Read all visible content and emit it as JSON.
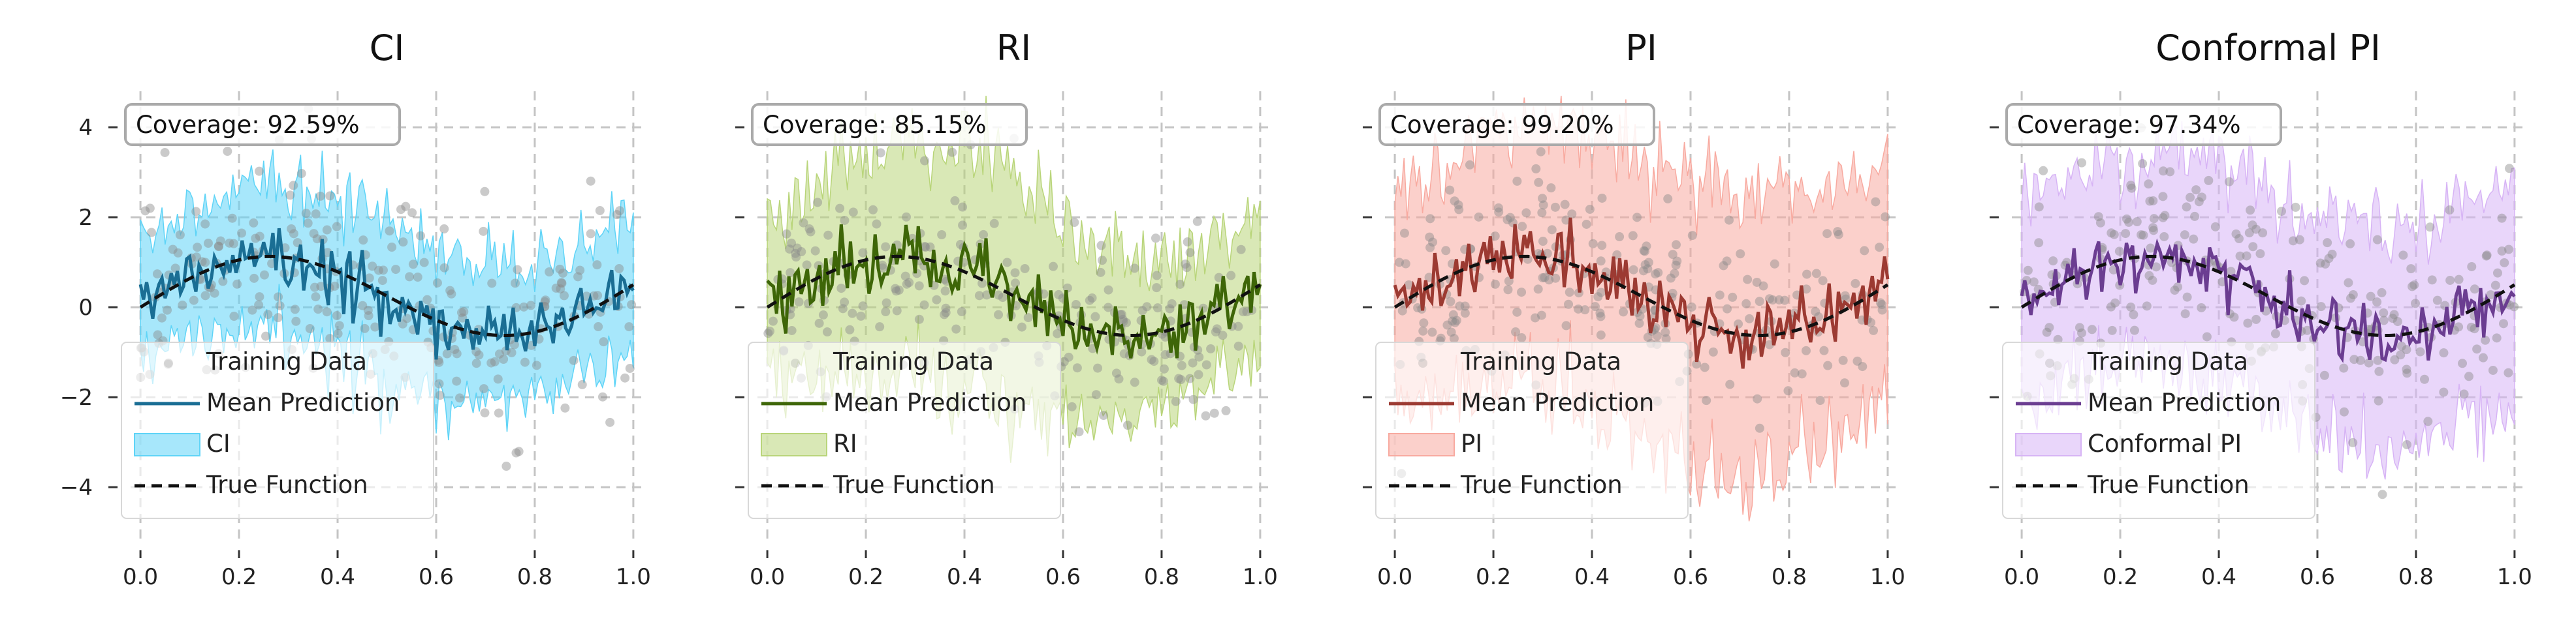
{
  "figure": {
    "shared_axes": {
      "x_ticks": [
        "0.0",
        "0.2",
        "0.4",
        "0.6",
        "0.8",
        "1.0"
      ],
      "y_ticks": [
        "−4",
        "−2",
        "0",
        "2",
        "4"
      ]
    }
  },
  "chart_data": [
    {
      "type": "line",
      "title": "CI",
      "coverage_text": "Coverage: 92.59%",
      "xlim": [
        -0.02,
        1.02
      ],
      "ylim": [
        -5.2,
        4.8
      ],
      "x_ticks": [
        0,
        0.2,
        0.4,
        0.6,
        0.8,
        1.0
      ],
      "y_ticks": [
        -4,
        -2,
        0,
        2,
        4
      ],
      "y_tick_labels_shown": true,
      "grid": true,
      "legend_position": "lower-left",
      "colors": {
        "band": "#5fd4f7",
        "mean": "#1a6e94",
        "scatter": "#8a8a8a",
        "true": "#111111"
      },
      "legend": [
        "Training Data",
        "Mean Prediction",
        "CI",
        "True Function"
      ],
      "band_halfwidth_profile": [
        [
          0.0,
          1.3
        ],
        [
          0.25,
          1.5
        ],
        [
          0.5,
          1.8
        ],
        [
          0.75,
          1.4
        ],
        [
          1.0,
          1.4
        ]
      ],
      "true_function": "sin(2*pi*x) + 0.5x",
      "noise_seed": 7
    },
    {
      "type": "line",
      "title": "RI",
      "coverage_text": "Coverage: 85.15%",
      "xlim": [
        -0.02,
        1.02
      ],
      "ylim": [
        -5.2,
        4.8
      ],
      "x_ticks": [
        0,
        0.2,
        0.4,
        0.6,
        0.8,
        1.0
      ],
      "y_ticks": [
        -4,
        -2,
        0,
        2,
        4
      ],
      "y_tick_labels_shown": false,
      "grid": true,
      "legend_position": "lower-left",
      "colors": {
        "band": "#b9d57a",
        "mean": "#3e6608",
        "scatter": "#8a8a8a",
        "true": "#111111"
      },
      "legend": [
        "Training Data",
        "Mean Prediction",
        "RI",
        "True Function"
      ],
      "band_halfwidth_profile": [
        [
          0.0,
          1.5
        ],
        [
          0.2,
          2.4
        ],
        [
          0.5,
          2.6
        ],
        [
          0.75,
          1.6
        ],
        [
          1.0,
          1.5
        ]
      ],
      "true_function": "sin(2*pi*x) + 0.5x",
      "noise_seed": 19
    },
    {
      "type": "line",
      "title": "PI",
      "coverage_text": "Coverage: 99.20%",
      "xlim": [
        -0.02,
        1.02
      ],
      "ylim": [
        -5.2,
        4.8
      ],
      "x_ticks": [
        0,
        0.2,
        0.4,
        0.6,
        0.8,
        1.0
      ],
      "y_ticks": [
        -4,
        -2,
        0,
        2,
        4
      ],
      "y_tick_labels_shown": false,
      "grid": true,
      "legend_position": "lower-left",
      "colors": {
        "band": "#f8aaa0",
        "mean": "#9c3a32",
        "scatter": "#8a8a8a",
        "true": "#111111"
      },
      "legend": [
        "Training Data",
        "Mean Prediction",
        "PI",
        "True Function"
      ],
      "band_halfwidth_profile": [
        [
          0.0,
          2.2
        ],
        [
          0.25,
          2.7
        ],
        [
          0.5,
          2.9
        ],
        [
          0.75,
          2.9
        ],
        [
          1.0,
          2.6
        ]
      ],
      "true_function": "sin(2*pi*x) + 0.5x",
      "noise_seed": 31
    },
    {
      "type": "line",
      "title": "Conformal PI",
      "coverage_text": "Coverage: 97.34%",
      "xlim": [
        -0.02,
        1.02
      ],
      "ylim": [
        -5.2,
        4.8
      ],
      "x_ticks": [
        0,
        0.2,
        0.4,
        0.6,
        0.8,
        1.0
      ],
      "y_ticks": [
        -4,
        -2,
        0,
        2,
        4
      ],
      "y_tick_labels_shown": false,
      "grid": true,
      "legend_position": "lower-left",
      "colors": {
        "band": "#d7b4f5",
        "mean": "#6b3d91",
        "scatter": "#8a8a8a",
        "true": "#111111"
      },
      "legend": [
        "Training Data",
        "Mean Prediction",
        "Conformal PI",
        "True Function"
      ],
      "band_halfwidth_profile": [
        [
          0.0,
          2.2
        ],
        [
          0.5,
          2.3
        ],
        [
          1.0,
          2.3
        ]
      ],
      "true_function": "sin(2*pi*x) + 0.5x",
      "noise_seed": 43
    }
  ]
}
